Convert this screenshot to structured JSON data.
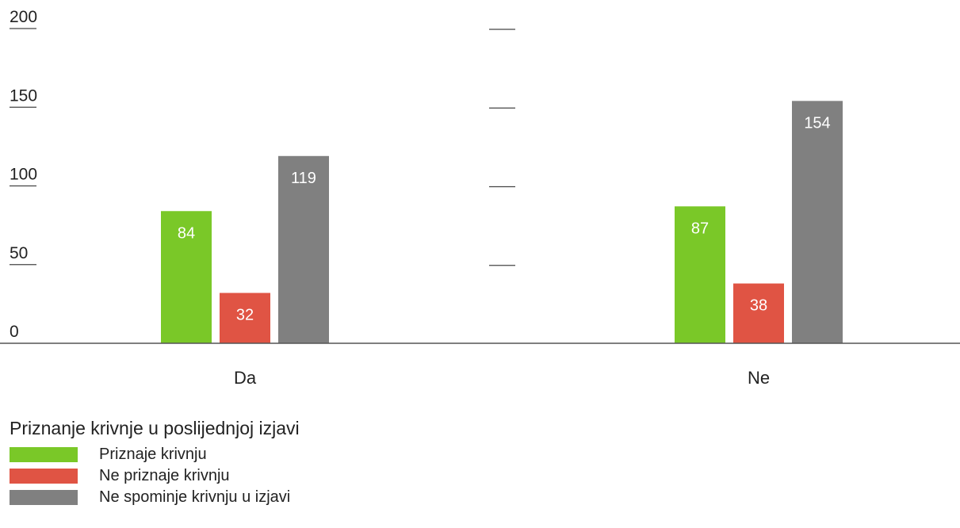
{
  "chart_data": {
    "type": "bar",
    "categories": [
      "Da",
      "Ne"
    ],
    "series": [
      {
        "name": "Priznaje krivnju",
        "values": [
          84,
          87
        ],
        "color": "#7ac828"
      },
      {
        "name": "Ne priznaje krivnju",
        "values": [
          32,
          38
        ],
        "color": "#e05444"
      },
      {
        "name": "Ne spominje krivnju u izjavi",
        "values": [
          119,
          154
        ],
        "color": "#808080"
      }
    ],
    "yticks": [
      "0",
      "50",
      "100",
      "150",
      "200"
    ],
    "ylim": [
      0,
      200
    ],
    "grid": false,
    "legend_title": "Priznanje krivnje u poslijednjoj izjavi",
    "legend_position": "bottom-left"
  }
}
